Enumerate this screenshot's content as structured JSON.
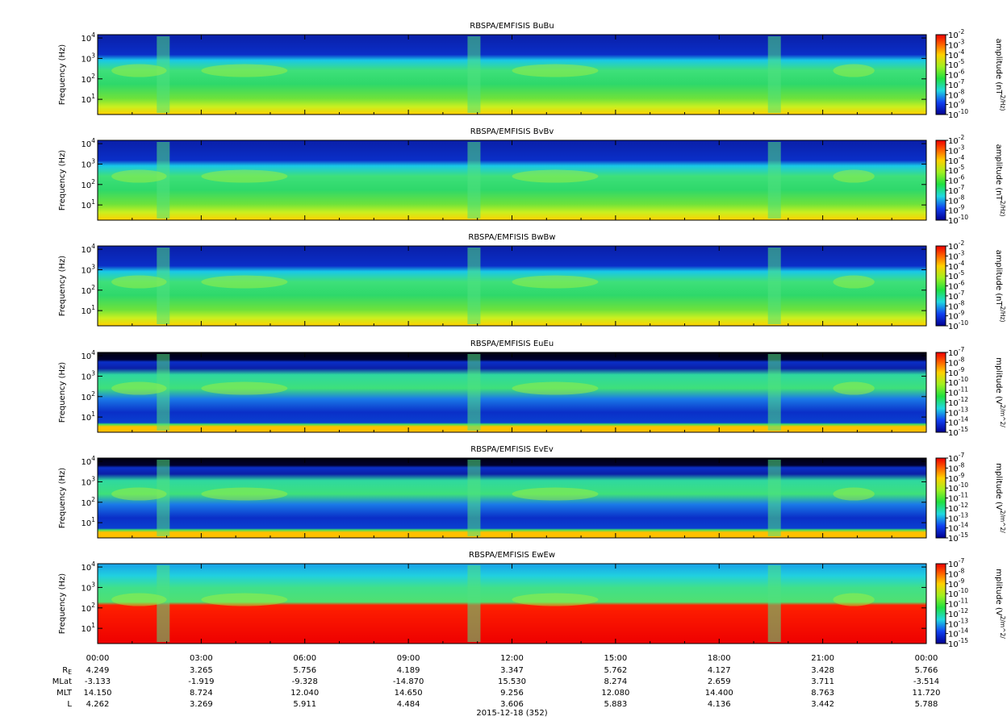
{
  "chart_data": [
    {
      "type": "spectrogram",
      "title": "RBSPA/EMFISIS  BuBu",
      "ylabel": "Frequency (Hz)",
      "ylog": true,
      "ylim": [
        1.8,
        14500
      ],
      "yticks": [
        {
          "value": 10,
          "label": "10^1"
        },
        {
          "value": 100,
          "label": "10^2"
        },
        {
          "value": 1000,
          "label": "10^3"
        },
        {
          "value": 10000,
          "label": "10^4"
        }
      ],
      "colorbar_label": "amplitude (nT^2/Hz)",
      "clim": [
        1e-10,
        0.01
      ],
      "cticks": [
        {
          "value": 0.01,
          "label": "10^-2"
        },
        {
          "value": 0.001,
          "label": "10^-3"
        },
        {
          "value": 0.0001,
          "label": "10^-4"
        },
        {
          "value": 1e-05,
          "label": "10^-5"
        },
        {
          "value": 1e-06,
          "label": "10^-6"
        },
        {
          "value": 1e-07,
          "label": "10^-7"
        },
        {
          "value": 1e-08,
          "label": "10^-8"
        },
        {
          "value": 1e-09,
          "label": "10^-9"
        },
        {
          "value": 1e-10,
          "label": "10^-10"
        }
      ]
    },
    {
      "type": "spectrogram",
      "title": "RBSPA/EMFISIS  BvBv",
      "ylabel": "Frequency (Hz)",
      "ylog": true,
      "ylim": [
        1.8,
        14500
      ],
      "yticks": [
        {
          "value": 10,
          "label": "10^1"
        },
        {
          "value": 100,
          "label": "10^2"
        },
        {
          "value": 1000,
          "label": "10^3"
        },
        {
          "value": 10000,
          "label": "10^4"
        }
      ],
      "colorbar_label": "amplitude (nT^2/Hz)",
      "clim": [
        1e-10,
        0.01
      ],
      "cticks": [
        {
          "value": 0.01,
          "label": "10^-2"
        },
        {
          "value": 0.001,
          "label": "10^-3"
        },
        {
          "value": 0.0001,
          "label": "10^-4"
        },
        {
          "value": 1e-05,
          "label": "10^-5"
        },
        {
          "value": 1e-06,
          "label": "10^-6"
        },
        {
          "value": 1e-07,
          "label": "10^-7"
        },
        {
          "value": 1e-08,
          "label": "10^-8"
        },
        {
          "value": 1e-09,
          "label": "10^-9"
        },
        {
          "value": 1e-10,
          "label": "10^-10"
        }
      ]
    },
    {
      "type": "spectrogram",
      "title": "RBSPA/EMFISIS  BwBw",
      "ylabel": "Frequency (Hz)",
      "ylog": true,
      "ylim": [
        1.8,
        14500
      ],
      "yticks": [
        {
          "value": 10,
          "label": "10^1"
        },
        {
          "value": 100,
          "label": "10^2"
        },
        {
          "value": 1000,
          "label": "10^3"
        },
        {
          "value": 10000,
          "label": "10^4"
        }
      ],
      "colorbar_label": "amplitude (nT^2/Hz)",
      "clim": [
        1e-10,
        0.01
      ],
      "cticks": [
        {
          "value": 0.01,
          "label": "10^-2"
        },
        {
          "value": 0.001,
          "label": "10^-3"
        },
        {
          "value": 0.0001,
          "label": "10^-4"
        },
        {
          "value": 1e-05,
          "label": "10^-5"
        },
        {
          "value": 1e-06,
          "label": "10^-6"
        },
        {
          "value": 1e-07,
          "label": "10^-7"
        },
        {
          "value": 1e-08,
          "label": "10^-8"
        },
        {
          "value": 1e-09,
          "label": "10^-9"
        },
        {
          "value": 1e-10,
          "label": "10^-10"
        }
      ]
    },
    {
      "type": "spectrogram",
      "title": "RBSPA/EMFISIS  EuEu",
      "ylabel": "Frequency (Hz)",
      "ylog": true,
      "ylim": [
        1.8,
        14500
      ],
      "yticks": [
        {
          "value": 10,
          "label": "10^1"
        },
        {
          "value": 100,
          "label": "10^2"
        },
        {
          "value": 1000,
          "label": "10^3"
        },
        {
          "value": 10000,
          "label": "10^4"
        }
      ],
      "colorbar_label": "mplitude (V^2/m^2/",
      "clim": [
        1e-15,
        1e-07
      ],
      "cticks": [
        {
          "value": 1e-07,
          "label": "10^-7"
        },
        {
          "value": 1e-08,
          "label": "10^-8"
        },
        {
          "value": 1e-09,
          "label": "10^-9"
        },
        {
          "value": 1e-10,
          "label": "10^-10"
        },
        {
          "value": 1e-11,
          "label": "10^-11"
        },
        {
          "value": 1e-12,
          "label": "10^-12"
        },
        {
          "value": 1e-13,
          "label": "10^-13"
        },
        {
          "value": 1e-14,
          "label": "10^-14"
        },
        {
          "value": 1e-15,
          "label": "10^-15"
        }
      ]
    },
    {
      "type": "spectrogram",
      "title": "RBSPA/EMFISIS  EvEv",
      "ylabel": "Frequency (Hz)",
      "ylog": true,
      "ylim": [
        1.8,
        14500
      ],
      "yticks": [
        {
          "value": 10,
          "label": "10^1"
        },
        {
          "value": 100,
          "label": "10^2"
        },
        {
          "value": 1000,
          "label": "10^3"
        },
        {
          "value": 10000,
          "label": "10^4"
        }
      ],
      "colorbar_label": "mplitude (V^2/m^2/",
      "clim": [
        1e-15,
        1e-07
      ],
      "cticks": [
        {
          "value": 1e-07,
          "label": "10^-7"
        },
        {
          "value": 1e-08,
          "label": "10^-8"
        },
        {
          "value": 1e-09,
          "label": "10^-9"
        },
        {
          "value": 1e-10,
          "label": "10^-10"
        },
        {
          "value": 1e-11,
          "label": "10^-11"
        },
        {
          "value": 1e-12,
          "label": "10^-12"
        },
        {
          "value": 1e-13,
          "label": "10^-13"
        },
        {
          "value": 1e-14,
          "label": "10^-14"
        },
        {
          "value": 1e-15,
          "label": "10^-15"
        }
      ]
    },
    {
      "type": "spectrogram",
      "title": "RBSPA/EMFISIS  EwEw",
      "ylabel": "Frequency (Hz)",
      "ylog": true,
      "ylim": [
        1.8,
        14500
      ],
      "yticks": [
        {
          "value": 10,
          "label": "10^1"
        },
        {
          "value": 100,
          "label": "10^2"
        },
        {
          "value": 1000,
          "label": "10^3"
        },
        {
          "value": 10000,
          "label": "10^4"
        }
      ],
      "colorbar_label": "mplitude (V^2/m^2/",
      "clim": [
        1e-15,
        1e-07
      ],
      "cticks": [
        {
          "value": 1e-07,
          "label": "10^-7"
        },
        {
          "value": 1e-08,
          "label": "10^-8"
        },
        {
          "value": 1e-09,
          "label": "10^-9"
        },
        {
          "value": 1e-10,
          "label": "10^-10"
        },
        {
          "value": 1e-11,
          "label": "10^-11"
        },
        {
          "value": 1e-12,
          "label": "10^-12"
        },
        {
          "value": 1e-13,
          "label": "10^-13"
        },
        {
          "value": 1e-14,
          "label": "10^-14"
        },
        {
          "value": 1e-15,
          "label": "10^-15"
        }
      ]
    }
  ],
  "time_axis": {
    "xlim": [
      0,
      24
    ],
    "xticks": [
      {
        "value": 0,
        "label": "00:00"
      },
      {
        "value": 3,
        "label": "03:00"
      },
      {
        "value": 6,
        "label": "06:00"
      },
      {
        "value": 9,
        "label": "09:00"
      },
      {
        "value": 12,
        "label": "12:00"
      },
      {
        "value": 15,
        "label": "15:00"
      },
      {
        "value": 18,
        "label": "18:00"
      },
      {
        "value": 21,
        "label": "21:00"
      },
      {
        "value": 24,
        "label": "00:00"
      }
    ],
    "xlabel": "2015-12-18 (352)",
    "ephemeris": [
      {
        "name": "R_E",
        "values": [
          "4.249",
          "3.265",
          "5.756",
          "4.189",
          "3.347",
          "5.762",
          "4.127",
          "3.428",
          "5.766"
        ]
      },
      {
        "name": "MLat",
        "values": [
          "-3.133",
          "-1.919",
          "-9.328",
          "-14.870",
          "15.530",
          "8.274",
          "2.659",
          "3.711",
          "-3.514"
        ]
      },
      {
        "name": "MLT",
        "values": [
          "14.150",
          "8.724",
          "12.040",
          "14.650",
          "9.256",
          "12.080",
          "14.400",
          "8.763",
          "11.720"
        ]
      },
      {
        "name": "L",
        "values": [
          "4.262",
          "3.269",
          "5.911",
          "4.484",
          "3.606",
          "5.883",
          "4.136",
          "3.442",
          "5.788"
        ]
      }
    ]
  }
}
